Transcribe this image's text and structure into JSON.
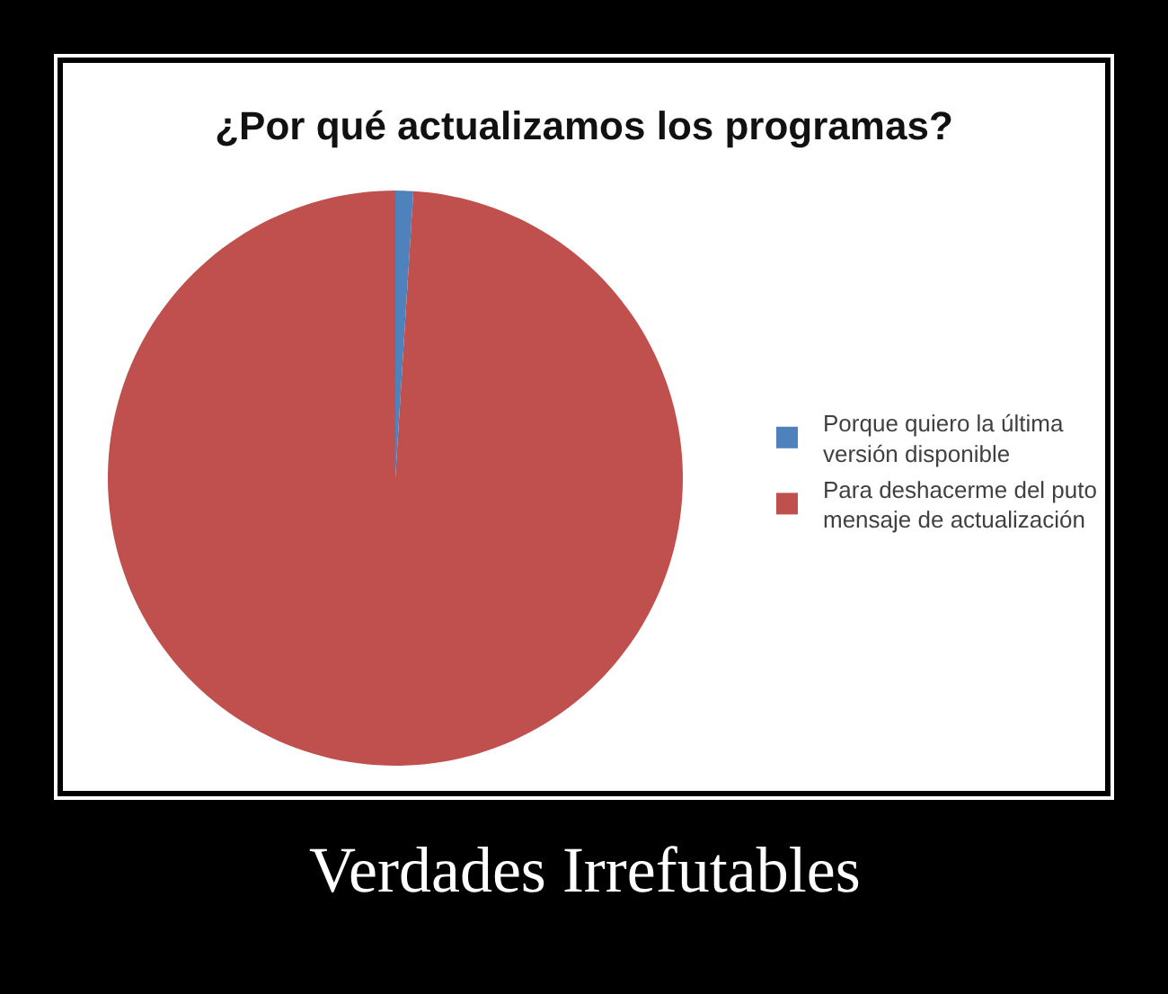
{
  "chart_data": {
    "type": "pie",
    "title": "¿Por qué actualizamos los programas?",
    "categories": [
      "Porque quiero la última versión disponible",
      "Para deshacerme del puto mensaje de actualización"
    ],
    "values": [
      1,
      99
    ],
    "colors": [
      "#4f81bd",
      "#c0504d"
    ],
    "legend": "right",
    "annotations": [
      "Verdades Irrefutables"
    ]
  }
}
